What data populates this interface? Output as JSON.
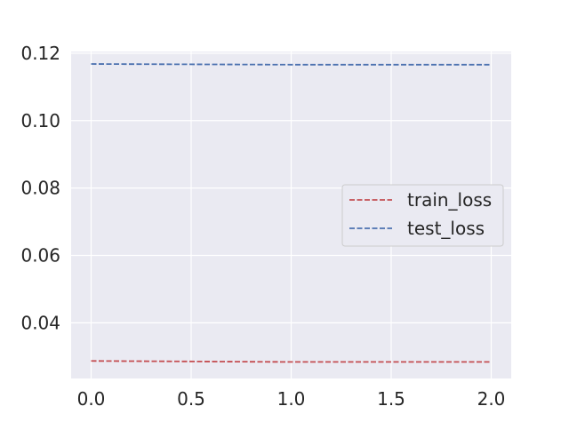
{
  "chart_data": {
    "type": "line",
    "title": "",
    "xlabel": "",
    "ylabel": "",
    "xlim": [
      -0.1,
      2.1
    ],
    "ylim": [
      0.0235,
      0.1205
    ],
    "xticks": [
      0.0,
      0.5,
      1.0,
      1.5,
      2.0
    ],
    "xtick_labels": [
      "0.0",
      "0.5",
      "1.0",
      "1.5",
      "2.0"
    ],
    "yticks": [
      0.04,
      0.06,
      0.08,
      0.1,
      0.12
    ],
    "ytick_labels": [
      "0.04",
      "0.06",
      "0.08",
      "0.10",
      "0.12"
    ],
    "grid": true,
    "background_color": "#EAEAF2",
    "legend_position": "center-right",
    "series": [
      {
        "name": "train_loss",
        "x": [
          0,
          1,
          2
        ],
        "values": [
          0.0287,
          0.0284,
          0.0284
        ],
        "color": "#C44E52",
        "line_style": "dashed"
      },
      {
        "name": "test_loss",
        "x": [
          0,
          1,
          2
        ],
        "values": [
          0.1168,
          0.1166,
          0.1166
        ],
        "color": "#4C72B0",
        "line_style": "dashed"
      }
    ]
  }
}
